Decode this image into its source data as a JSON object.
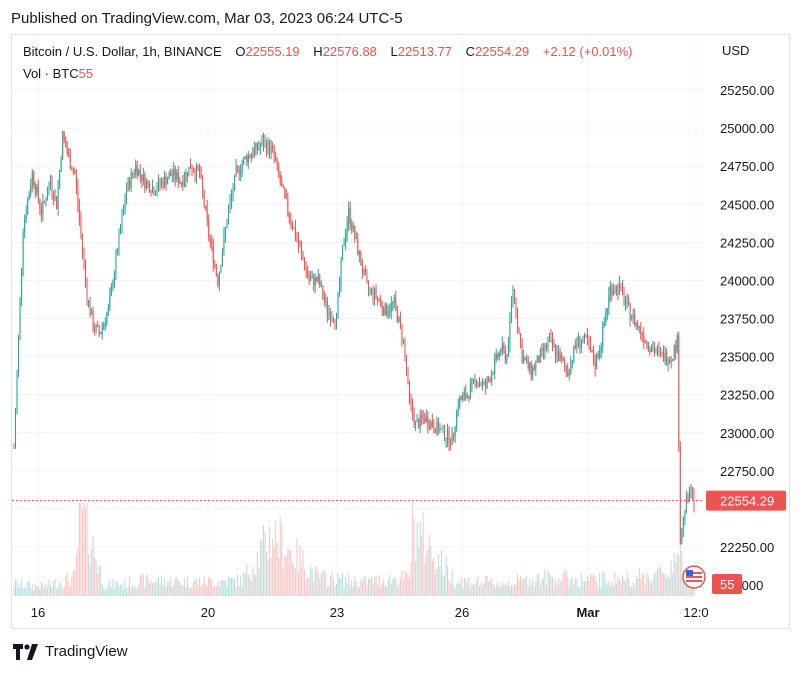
{
  "published": "Published on TradingView.com, Mar 03, 2023 06:24 UTC-5",
  "symbol": "Bitcoin / U.S. Dollar, 1h, BINANCE",
  "ohlc": {
    "o_label": "O",
    "o": "22555.19",
    "h_label": "H",
    "h": "22576.88",
    "l_label": "L",
    "l": "22513.77",
    "c_label": "C",
    "c": "22554.29",
    "change": "+2.12 (+0.01%)"
  },
  "volume": {
    "label": "Vol · BTC",
    "value": "55"
  },
  "currency": "USD",
  "last_price_badge": "22554.29",
  "volume_badge": "55",
  "brand": "TradingView",
  "colors": {
    "up": "#26a69a",
    "down": "#ef5350",
    "grid": "#f0f3fa",
    "price_line": "#ef5350"
  },
  "chart_data": {
    "type": "candlestick",
    "title": "Bitcoin / U.S. Dollar, 1h, BINANCE",
    "ylabel": "USD",
    "ylim": [
      22000,
      25400
    ],
    "y_ticks": [
      "25250.00",
      "25000.00",
      "24750.00",
      "24500.00",
      "24250.00",
      "24000.00",
      "23750.00",
      "23500.00",
      "23250.00",
      "23000.00",
      "22750.00",
      "22250.00"
    ],
    "x_ticks": [
      "16",
      "20",
      "23",
      "26",
      "Mar",
      "12:0"
    ],
    "last_price": 22554.29,
    "price_path": [
      [
        0,
        22900
      ],
      [
        6,
        24350
      ],
      [
        12,
        24700
      ],
      [
        18,
        24450
      ],
      [
        24,
        24650
      ],
      [
        28,
        24500
      ],
      [
        32,
        24950
      ],
      [
        36,
        24800
      ],
      [
        40,
        24700
      ],
      [
        44,
        24300
      ],
      [
        48,
        23900
      ],
      [
        52,
        23700
      ],
      [
        56,
        23650
      ],
      [
        62,
        23800
      ],
      [
        68,
        24200
      ],
      [
        74,
        24600
      ],
      [
        80,
        24750
      ],
      [
        86,
        24650
      ],
      [
        92,
        24600
      ],
      [
        98,
        24650
      ],
      [
        104,
        24700
      ],
      [
        110,
        24650
      ],
      [
        116,
        24750
      ],
      [
        122,
        24700
      ],
      [
        128,
        24300
      ],
      [
        134,
        24000
      ],
      [
        140,
        24400
      ],
      [
        146,
        24700
      ],
      [
        152,
        24800
      ],
      [
        158,
        24850
      ],
      [
        164,
        24900
      ],
      [
        170,
        24850
      ],
      [
        176,
        24600
      ],
      [
        182,
        24400
      ],
      [
        188,
        24200
      ],
      [
        194,
        24000
      ],
      [
        200,
        24000
      ],
      [
        206,
        23800
      ],
      [
        212,
        23750
      ],
      [
        216,
        24200
      ],
      [
        220,
        24450
      ],
      [
        226,
        24200
      ],
      [
        232,
        23950
      ],
      [
        238,
        23900
      ],
      [
        244,
        23800
      ],
      [
        250,
        23850
      ],
      [
        256,
        23600
      ],
      [
        260,
        23200
      ],
      [
        264,
        23050
      ],
      [
        270,
        23100
      ],
      [
        276,
        23050
      ],
      [
        282,
        23000
      ],
      [
        288,
        22950
      ],
      [
        292,
        23200
      ],
      [
        298,
        23250
      ],
      [
        304,
        23350
      ],
      [
        310,
        23300
      ],
      [
        316,
        23450
      ],
      [
        320,
        23550
      ],
      [
        324,
        23500
      ],
      [
        328,
        23950
      ],
      [
        334,
        23500
      ],
      [
        340,
        23400
      ],
      [
        346,
        23500
      ],
      [
        352,
        23600
      ],
      [
        358,
        23500
      ],
      [
        364,
        23400
      ],
      [
        370,
        23600
      ],
      [
        376,
        23600
      ],
      [
        382,
        23450
      ],
      [
        386,
        23600
      ],
      [
        392,
        23950
      ],
      [
        398,
        23950
      ],
      [
        404,
        23800
      ],
      [
        410,
        23700
      ],
      [
        416,
        23600
      ],
      [
        420,
        23550
      ],
      [
        426,
        23500
      ],
      [
        432,
        23500
      ],
      [
        436,
        23600
      ],
      [
        438,
        22300
      ],
      [
        441,
        22500
      ],
      [
        444,
        22600
      ],
      [
        447,
        22554
      ]
    ],
    "volume_path": [
      [
        0,
        8
      ],
      [
        20,
        6
      ],
      [
        40,
        12
      ],
      [
        44,
        55
      ],
      [
        60,
        7
      ],
      [
        90,
        10
      ],
      [
        120,
        9
      ],
      [
        150,
        10
      ],
      [
        170,
        40
      ],
      [
        200,
        12
      ],
      [
        230,
        9
      ],
      [
        260,
        12
      ],
      [
        262,
        45
      ],
      [
        290,
        10
      ],
      [
        320,
        8
      ],
      [
        350,
        12
      ],
      [
        380,
        10
      ],
      [
        410,
        12
      ],
      [
        430,
        15
      ],
      [
        436,
        30
      ],
      [
        440,
        18
      ],
      [
        447,
        8
      ]
    ],
    "volume_max": 60
  }
}
